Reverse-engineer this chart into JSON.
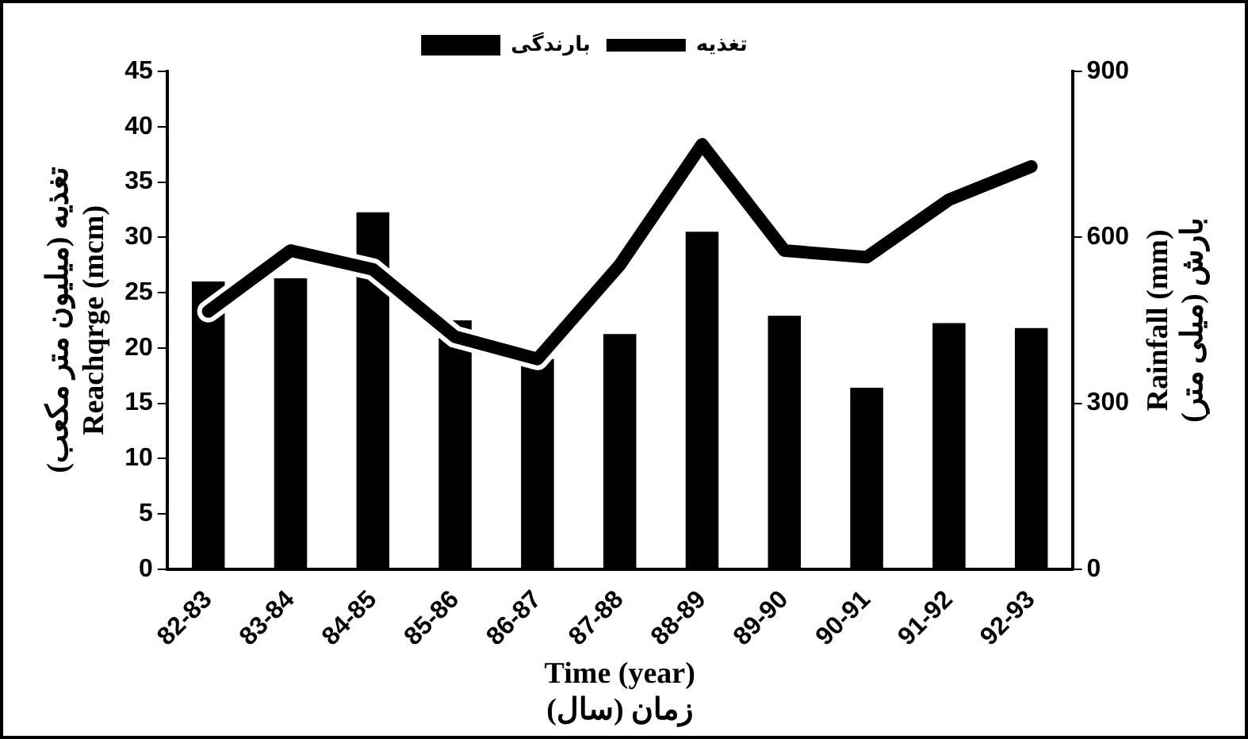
{
  "chart_data": {
    "type": "bar",
    "categories": [
      "82-83",
      "83-84",
      "84-85",
      "85-86",
      "86-87",
      "87-88",
      "88-89",
      "89-90",
      "90-91",
      "91-92",
      "92-93"
    ],
    "series": [
      {
        "name": "بارندگی",
        "axis": "y2",
        "color": "#000000",
        "values": [
          520,
          526,
          645,
          450,
          380,
          425,
          610,
          458,
          328,
          445,
          436
        ]
      },
      {
        "name": "تغذیه",
        "type": "line",
        "axis": "y",
        "color": "#000000",
        "values": [
          23.3,
          28.8,
          27.1,
          21,
          19,
          27.5,
          38.4,
          28.8,
          28.2,
          33.4,
          36.4
        ]
      }
    ],
    "xlabel": "Time (year)\nزمان (سال)",
    "ylabel": "تغذیه (میلیون متر مکعب)\nReachqrge (mcm)",
    "y2label": "Rainfall (mm)\nبارش (میلی متر)",
    "ylim": [
      0,
      45
    ],
    "yticks": [
      0,
      5,
      10,
      15,
      20,
      25,
      30,
      35,
      40,
      45
    ],
    "y2lim": [
      0,
      900
    ],
    "y2ticks": [
      0,
      300,
      600,
      900
    ],
    "grid": false,
    "legend": "top",
    "marker": "none",
    "line_style": "solid"
  }
}
